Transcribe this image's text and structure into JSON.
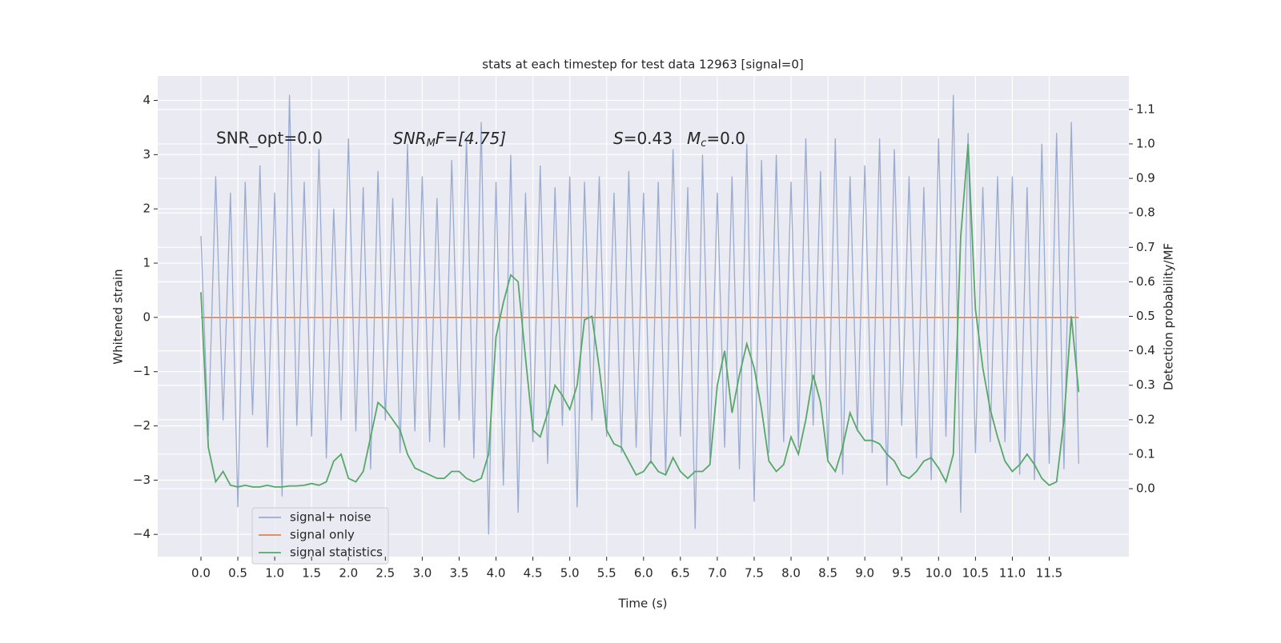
{
  "chart_data": {
    "type": "line",
    "title": "stats at each timestep for test data 12963 [signal=0]",
    "x_label": "Time (s)",
    "y_label": "Whitened strain",
    "y2_label": "Detection probability/MF",
    "annotations": {
      "snr_opt": "SNR_opt=0.0",
      "snr_mf": [
        "SNR",
        "M",
        "F=[4.75]"
      ],
      "s": [
        "S",
        "=0.43"
      ],
      "mc": [
        "M",
        "c",
        "=0.0"
      ]
    },
    "grid": true,
    "legend": "lower left",
    "xlim": [
      -0.586,
      12.58
    ],
    "ylim": [
      -4.41,
      4.45
    ],
    "y2lim": [
      -0.197,
      1.197
    ],
    "xticks": [
      {
        "value": 0,
        "label": "0.0"
      },
      0.5,
      {
        "value": 1,
        "label": "1.0"
      },
      1.5,
      {
        "value": 2,
        "label": "2.0"
      },
      2.5,
      {
        "value": 3,
        "label": "3.0"
      },
      3.5,
      {
        "value": 4,
        "label": "4.0"
      },
      4.5,
      {
        "value": 5,
        "label": "5.0"
      },
      5.5,
      {
        "value": 6,
        "label": "6.0"
      },
      6.5,
      {
        "value": 7,
        "label": "7.0"
      },
      7.5,
      {
        "value": 8,
        "label": "8.0"
      },
      8.5,
      {
        "value": 9,
        "label": "9.0"
      },
      9.5,
      {
        "value": 10,
        "label": "10.0"
      },
      10.5,
      {
        "value": 11,
        "label": "11.0"
      },
      11.5
    ],
    "yticks": [
      {
        "value": -4,
        "label": "−4"
      },
      {
        "value": -3,
        "label": "−3"
      },
      {
        "value": -2,
        "label": "−2"
      },
      {
        "value": -1,
        "label": "−1"
      },
      0,
      1,
      2,
      3,
      4
    ],
    "y2ticks": [
      {
        "value": 0,
        "label": "0.0"
      },
      0.1,
      0.2,
      0.3,
      0.4,
      0.5,
      0.6,
      0.7,
      0.8,
      0.9,
      {
        "value": 1,
        "label": "1.0"
      },
      1.1
    ],
    "x": [
      0,
      0.1,
      0.2,
      0.3,
      0.4,
      0.5,
      0.6,
      0.7,
      0.8,
      0.9,
      1,
      1.1,
      1.2,
      1.3,
      1.4,
      1.5,
      1.6,
      1.7,
      1.8,
      1.9,
      2,
      2.1,
      2.2,
      2.3,
      2.4,
      2.5,
      2.6,
      2.7,
      2.8,
      2.9,
      3,
      3.1,
      3.2,
      3.3,
      3.4,
      3.5,
      3.6,
      3.7,
      3.8,
      3.9,
      4,
      4.1,
      4.2,
      4.3,
      4.4,
      4.5,
      4.6,
      4.7,
      4.8,
      4.9,
      5,
      5.1,
      5.2,
      5.3,
      5.4,
      5.5,
      5.6,
      5.7,
      5.8,
      5.9,
      6,
      6.1,
      6.2,
      6.3,
      6.4,
      6.5,
      6.6,
      6.7,
      6.8,
      6.9,
      7,
      7.1,
      7.2,
      7.3,
      7.4,
      7.5,
      7.6,
      7.7,
      7.8,
      7.9,
      8,
      8.1,
      8.2,
      8.3,
      8.4,
      8.5,
      8.6,
      8.7,
      8.8,
      8.9,
      9,
      9.1,
      9.2,
      9.3,
      9.4,
      9.5,
      9.6,
      9.7,
      9.8,
      9.9,
      10,
      10.1,
      10.2,
      10.3,
      10.4,
      10.5,
      10.6,
      10.7,
      10.8,
      10.9,
      11,
      11.1,
      11.2,
      11.3,
      11.4,
      11.5,
      11.6,
      11.7,
      11.8,
      11.9
    ],
    "series": [
      {
        "name": "signal+ noise",
        "color": "#9aabd0",
        "values": [
          1.5,
          -2.2,
          2.6,
          -1.9,
          2.3,
          -3.5,
          2.5,
          -1.8,
          2.8,
          -2.4,
          2.3,
          -3.3,
          4.1,
          -2.0,
          2.5,
          -2.2,
          3.1,
          -2.6,
          2.0,
          -1.9,
          3.3,
          -2.1,
          2.4,
          -2.8,
          2.7,
          -1.9,
          2.2,
          -2.5,
          3.2,
          -2.1,
          2.6,
          -2.3,
          2.2,
          -2.4,
          2.9,
          -1.9,
          3.3,
          -2.6,
          3.6,
          -4.0,
          2.5,
          -3.1,
          3.0,
          -3.6,
          2.3,
          -2.3,
          2.8,
          -2.7,
          2.4,
          -2.0,
          2.6,
          -3.5,
          2.5,
          -1.9,
          2.6,
          -2.2,
          2.3,
          -2.5,
          2.7,
          -2.4,
          2.3,
          -2.7,
          2.5,
          -2.9,
          3.1,
          -2.2,
          2.4,
          -3.9,
          3.0,
          -2.6,
          2.3,
          -2.4,
          2.6,
          -2.8,
          3.2,
          -3.4,
          2.9,
          -2.5,
          3.0,
          -2.3,
          2.5,
          -2.4,
          3.3,
          -2.0,
          2.7,
          -2.6,
          3.3,
          -2.9,
          2.6,
          -2.1,
          2.8,
          -2.5,
          3.3,
          -3.1,
          3.1,
          -2.0,
          2.6,
          -2.6,
          2.4,
          -3.0,
          3.3,
          -2.2,
          4.1,
          -3.6,
          3.4,
          -2.5,
          2.4,
          -2.3,
          2.6,
          -2.3,
          2.6,
          -2.9,
          2.4,
          -3.0,
          3.2,
          -2.7,
          3.4,
          -2.8,
          3.6,
          -2.7
        ]
      },
      {
        "name": "signal only",
        "color": "#dd8452",
        "values": [
          0,
          0,
          0,
          0,
          0,
          0,
          0,
          0,
          0,
          0,
          0,
          0,
          0,
          0,
          0,
          0,
          0,
          0,
          0,
          0,
          0,
          0,
          0,
          0,
          0,
          0,
          0,
          0,
          0,
          0,
          0,
          0,
          0,
          0,
          0,
          0,
          0,
          0,
          0,
          0,
          0,
          0,
          0,
          0,
          0,
          0,
          0,
          0,
          0,
          0,
          0,
          0,
          0,
          0,
          0,
          0,
          0,
          0,
          0,
          0,
          0,
          0,
          0,
          0,
          0,
          0,
          0,
          0,
          0,
          0,
          0,
          0,
          0,
          0,
          0,
          0,
          0,
          0,
          0,
          0,
          0,
          0,
          0,
          0,
          0,
          0,
          0,
          0,
          0,
          0,
          0,
          0,
          0,
          0,
          0,
          0,
          0,
          0,
          0,
          0,
          0,
          0,
          0,
          0,
          0,
          0,
          0,
          0,
          0,
          0,
          0,
          0,
          0,
          0,
          0,
          0,
          0,
          0,
          0,
          0
        ]
      },
      {
        "name": "signal statistics",
        "color": "#55a868",
        "axis": "y2",
        "values": [
          0.57,
          0.12,
          0.02,
          0.05,
          0.01,
          0.005,
          0.01,
          0.005,
          0.005,
          0.01,
          0.005,
          0.005,
          0.008,
          0.008,
          0.01,
          0.015,
          0.01,
          0.02,
          0.08,
          0.1,
          0.03,
          0.02,
          0.05,
          0.15,
          0.25,
          0.23,
          0.2,
          0.17,
          0.1,
          0.06,
          0.05,
          0.04,
          0.03,
          0.03,
          0.05,
          0.05,
          0.03,
          0.02,
          0.03,
          0.1,
          0.44,
          0.54,
          0.62,
          0.6,
          0.38,
          0.17,
          0.15,
          0.22,
          0.3,
          0.27,
          0.23,
          0.3,
          0.49,
          0.5,
          0.35,
          0.17,
          0.13,
          0.12,
          0.08,
          0.04,
          0.05,
          0.08,
          0.05,
          0.04,
          0.09,
          0.05,
          0.03,
          0.05,
          0.05,
          0.07,
          0.3,
          0.4,
          0.22,
          0.33,
          0.42,
          0.35,
          0.23,
          0.08,
          0.05,
          0.07,
          0.15,
          0.1,
          0.2,
          0.33,
          0.25,
          0.08,
          0.05,
          0.12,
          0.22,
          0.17,
          0.14,
          0.14,
          0.13,
          0.1,
          0.08,
          0.04,
          0.03,
          0.05,
          0.08,
          0.09,
          0.06,
          0.02,
          0.1,
          0.73,
          1.0,
          0.52,
          0.35,
          0.23,
          0.15,
          0.08,
          0.05,
          0.07,
          0.1,
          0.07,
          0.03,
          0.01,
          0.02,
          0.2,
          0.5,
          0.28
        ]
      }
    ]
  }
}
